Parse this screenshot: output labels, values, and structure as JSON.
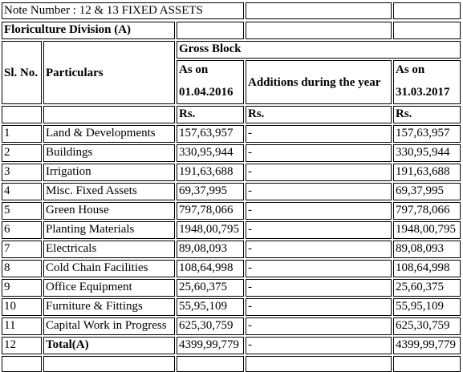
{
  "note_title": "Note Number : 12 & 13 FIXED ASSETS",
  "division": "Floriculture Division (A)",
  "headers": {
    "sl_no": "Sl. No.",
    "particulars": "Particulars",
    "gross_block": "Gross Block",
    "as_on_open_a": "As on",
    "as_on_open_b": "01.04.2016",
    "additions": "Additions during the year",
    "as_on_close_a": "As on",
    "as_on_close_b": "31.03.2017",
    "unit_open": "Rs.",
    "unit_add": "Rs.",
    "unit_close": "Rs."
  },
  "rows": [
    {
      "sl": "1",
      "particulars": "Land & Developments",
      "opening": "157,63,957",
      "additions": "-",
      "closing": "157,63,957"
    },
    {
      "sl": "2",
      "particulars": "Buildings",
      "opening": "330,95,944",
      "additions": "-",
      "closing": "330,95,944"
    },
    {
      "sl": "3",
      "particulars": "Irrigation",
      "opening": "191,63,688",
      "additions": "-",
      "closing": "191,63,688"
    },
    {
      "sl": "4",
      "particulars": "Misc. Fixed Assets",
      "opening": "69,37,995",
      "additions": "-",
      "closing": "69,37,995"
    },
    {
      "sl": "5",
      "particulars": "Green House",
      "opening": "797,78,066",
      "additions": "-",
      "closing": "797,78,066"
    },
    {
      "sl": "6",
      "particulars": "Planting Materials",
      "opening": "1948,00,795",
      "additions": "-",
      "closing": "1948,00,795"
    },
    {
      "sl": "7",
      "particulars": "Electricals",
      "opening": "89,08,093",
      "additions": "-",
      "closing": "89,08,093"
    },
    {
      "sl": "8",
      "particulars": "Cold Chain Facilities",
      "opening": "108,64,998",
      "additions": "-",
      "closing": "108,64,998"
    },
    {
      "sl": "9",
      "particulars": "Office Equipment",
      "opening": "25,60,375",
      "additions": "-",
      "closing": "25,60,375"
    },
    {
      "sl": "10",
      "particulars": "Furniture & Fittings",
      "opening": "55,95,109",
      "additions": "-",
      "closing": "55,95,109"
    },
    {
      "sl": "11",
      "particulars": "Capital Work in Progress",
      "opening": "625,30,759",
      "additions": "-",
      "closing": "625,30,759"
    },
    {
      "sl": "12",
      "particulars": "Total(A)",
      "opening": "4399,99,779",
      "additions": "-",
      "closing": "4399,99,779",
      "bold_particulars": true
    }
  ]
}
